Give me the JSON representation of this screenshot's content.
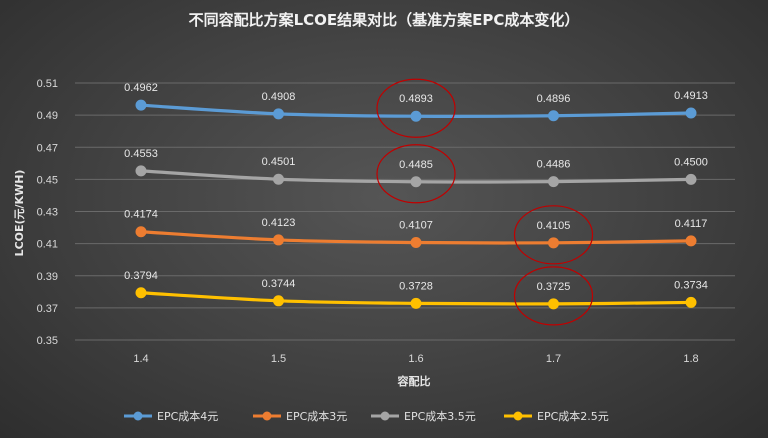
{
  "chart_data": {
    "type": "line",
    "title": "不同容配比方案LCOE结果对比（基准方案EPC成本变化）",
    "xlabel": "容配比",
    "ylabel": "LCOE(元/KWH)",
    "categories": [
      "1.4",
      "1.5",
      "1.6",
      "1.7",
      "1.8"
    ],
    "ylim": [
      0.35,
      0.51
    ],
    "yticks": [
      "0.35",
      "0.37",
      "0.39",
      "0.41",
      "0.43",
      "0.45",
      "0.47",
      "0.49",
      "0.51"
    ],
    "grid": true,
    "legend_position": "bottom",
    "series": [
      {
        "name": "EPC成本4元",
        "color": "#5b9bd5",
        "values": [
          0.4962,
          0.4908,
          0.4893,
          0.4896,
          0.4913
        ],
        "labels": [
          "0.4962",
          "0.4908",
          "0.4893",
          "0.4896",
          "0.4913"
        ]
      },
      {
        "name": "EPC成本3元",
        "color": "#ed7d31",
        "values": [
          0.4174,
          0.4123,
          0.4107,
          0.4105,
          0.4117
        ],
        "labels": [
          "0.4174",
          "0.4123",
          "0.4107",
          "0.4105",
          "0.4117"
        ]
      },
      {
        "name": "EPC成本3.5元",
        "color": "#a5a5a5",
        "values": [
          0.4553,
          0.4501,
          0.4485,
          0.4486,
          0.45
        ],
        "labels": [
          "0.4553",
          "0.4501",
          "0.4485",
          "0.4486",
          "0.4500"
        ]
      },
      {
        "name": "EPC成本2.5元",
        "color": "#ffc000",
        "values": [
          0.3794,
          0.3744,
          0.3728,
          0.3725,
          0.3734
        ],
        "labels": [
          "0.3794",
          "0.3744",
          "0.3728",
          "0.3725",
          "0.3734"
        ]
      }
    ],
    "annotations": [
      {
        "type": "circle",
        "series": "EPC成本4元",
        "category": "1.6",
        "color": "#c00000"
      },
      {
        "type": "circle",
        "series": "EPC成本3.5元",
        "category": "1.6",
        "color": "#c00000"
      },
      {
        "type": "circle",
        "series": "EPC成本3元",
        "category": "1.7",
        "color": "#c00000"
      },
      {
        "type": "circle",
        "series": "EPC成本2.5元",
        "category": "1.7",
        "color": "#c00000"
      }
    ]
  }
}
